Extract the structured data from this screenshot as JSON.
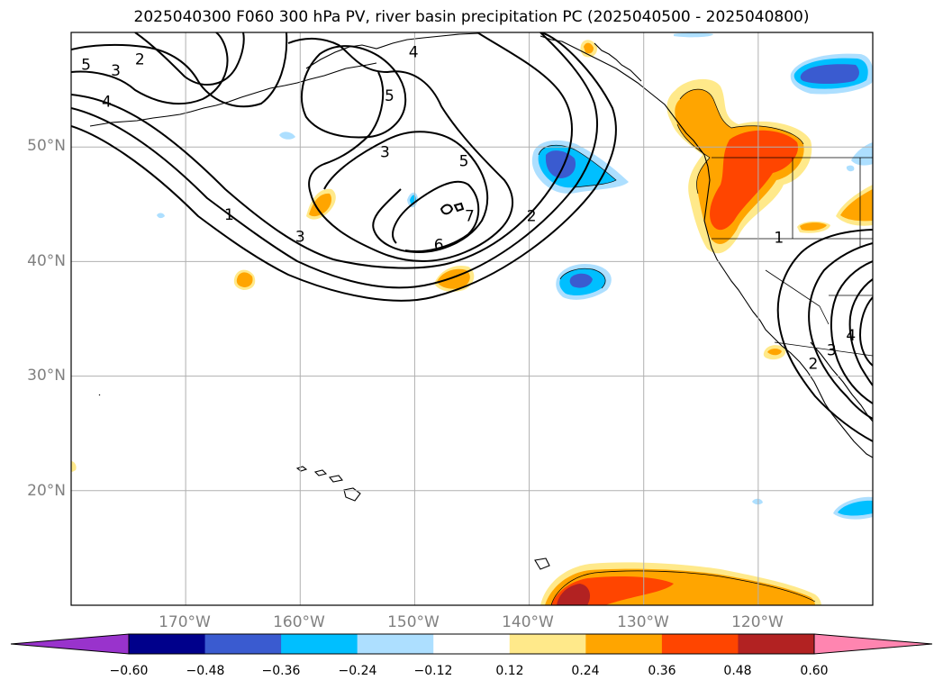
{
  "title": "2025040300 F060 300 hPa PV, river basin precipitation PC (2025040500 - 2025040800)",
  "map": {
    "lon_range": [
      -180,
      -110
    ],
    "lat_range": [
      10,
      60
    ],
    "gridlines": true,
    "lat_ticks": [
      {
        "value": 50,
        "label": "50°N"
      },
      {
        "value": 40,
        "label": "40°N"
      },
      {
        "value": 30,
        "label": "30°N"
      },
      {
        "value": 20,
        "label": "20°N"
      }
    ],
    "lon_ticks": [
      {
        "value": -170,
        "label": "170°W"
      },
      {
        "value": -160,
        "label": "160°W"
      },
      {
        "value": -150,
        "label": "150°W"
      },
      {
        "value": -140,
        "label": "140°W"
      },
      {
        "value": -130,
        "label": "130°W"
      },
      {
        "value": -120,
        "label": "120°W"
      }
    ],
    "contour_labels": [
      {
        "text": "5",
        "lon": -178.7,
        "lat": 57.2
      },
      {
        "text": "3",
        "lon": -176.1,
        "lat": 56.7
      },
      {
        "text": "2",
        "lon": -174.0,
        "lat": 57.7
      },
      {
        "text": "4",
        "lon": -176.9,
        "lat": 54.0
      },
      {
        "text": "4",
        "lon": -150.1,
        "lat": 58.3
      },
      {
        "text": "5",
        "lon": -152.2,
        "lat": 54.5
      },
      {
        "text": "3",
        "lon": -152.6,
        "lat": 49.6
      },
      {
        "text": "5",
        "lon": -145.7,
        "lat": 48.8
      },
      {
        "text": "1",
        "lon": -166.2,
        "lat": 44.1
      },
      {
        "text": "3",
        "lon": -160.0,
        "lat": 42.2
      },
      {
        "text": "6",
        "lon": -147.9,
        "lat": 41.5
      },
      {
        "text": "7",
        "lon": -145.2,
        "lat": 44.0
      },
      {
        "text": "2",
        "lon": -139.8,
        "lat": 44.0
      },
      {
        "text": "1",
        "lon": -118.2,
        "lat": 42.1
      },
      {
        "text": "4",
        "lon": -111.9,
        "lat": 33.6
      },
      {
        "text": "3",
        "lon": -113.6,
        "lat": 32.3
      },
      {
        "text": "2",
        "lon": -115.2,
        "lat": 31.1
      }
    ]
  },
  "colorbar": {
    "levels": [
      "−0.60",
      "−0.48",
      "−0.36",
      "−0.24",
      "−0.12",
      "0.12",
      "0.24",
      "0.36",
      "0.48",
      "0.60"
    ],
    "colors": [
      "#9933cc",
      "#00008b",
      "#3a5bd0",
      "#00bfff",
      "#addfff",
      "#ffffff",
      "#ffe98a",
      "#ffa500",
      "#ff4500",
      "#b22222",
      "#ff85b0"
    ],
    "extend": "both"
  }
}
